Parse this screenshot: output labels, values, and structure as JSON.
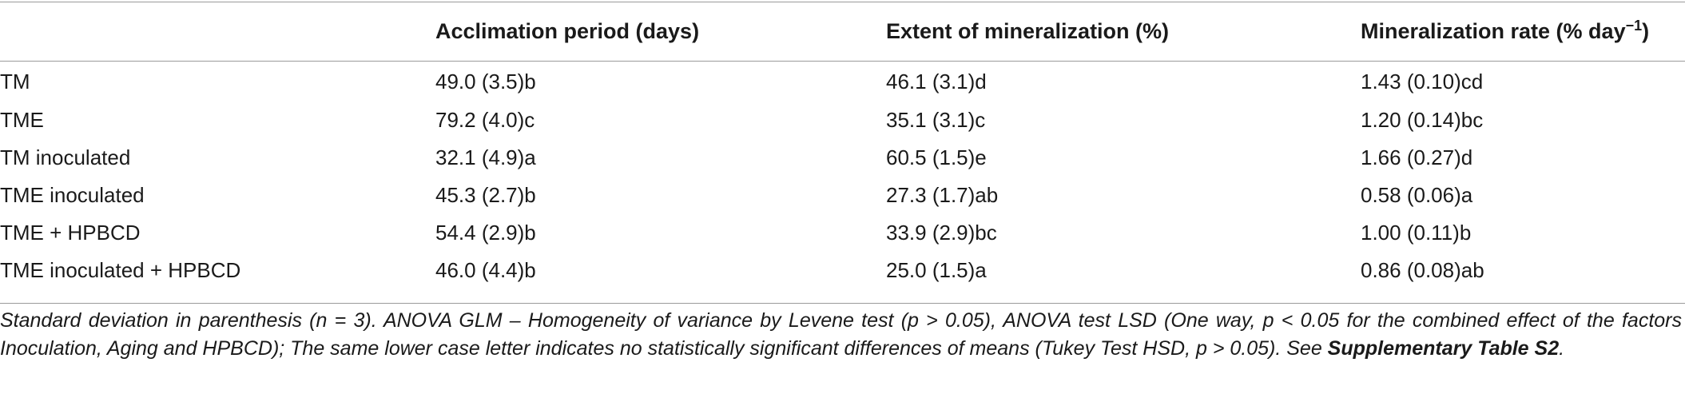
{
  "table": {
    "headers": [
      "",
      "Acclimation period (days)",
      "Extent of mineralization (%)",
      "Mineralization rate (% day"
    ],
    "rate_header_superscript": "−1",
    "rate_header_close": ")",
    "rows": [
      [
        "TM",
        "49.0 (3.5)b",
        "46.1 (3.1)d",
        "1.43 (0.10)cd"
      ],
      [
        "TME",
        "79.2 (4.0)c",
        "35.1 (3.1)c",
        "1.20 (0.14)bc"
      ],
      [
        "TM inoculated",
        "32.1 (4.9)a",
        "60.5 (1.5)e",
        "1.66 (0.27)d"
      ],
      [
        "TME inoculated",
        "45.3 (2.7)b",
        "27.3 (1.7)ab",
        "0.58 (0.06)a"
      ],
      [
        "TME + HPBCD",
        "54.4 (2.9)b",
        "33.9 (2.9)bc",
        "1.00 (0.11)b"
      ],
      [
        "TME inoculated + HPBCD",
        "46.0 (4.4)b",
        "25.0 (1.5)a",
        "0.86 (0.08)ab"
      ]
    ]
  },
  "footnote": {
    "text": "Standard deviation in parenthesis (n = 3). ANOVA GLM – Homogeneity of variance by Levene test (p > 0.05), ANOVA test LSD (One way, p < 0.05 for the combined effect of the factors Inoculation, Aging and HPBCD); The same lower case letter indicates no statistically significant differences of means (Tukey Test HSD, p > 0.05). See ",
    "reference": "Supplementary Table S2",
    "end": "."
  }
}
